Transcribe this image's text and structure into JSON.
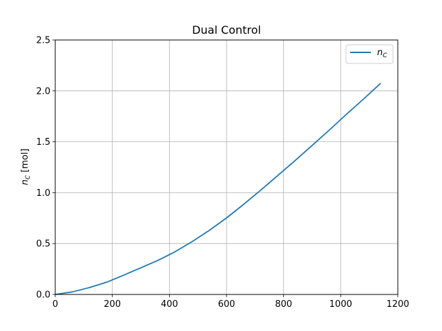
{
  "chart_data": {
    "type": "line",
    "title": "Dual Control",
    "xlabel": "",
    "ylabel": "n_C  [mol]",
    "ylabel_main": "n",
    "ylabel_sub": "C",
    "ylabel_unit": " [mol]",
    "xlim": [
      0,
      1200
    ],
    "ylim": [
      0,
      2.5
    ],
    "xticks": [
      0,
      200,
      400,
      600,
      800,
      1000,
      1200
    ],
    "yticks": [
      0.0,
      0.5,
      1.0,
      1.5,
      2.0,
      2.5
    ],
    "xtick_labels": [
      "0",
      "200",
      "400",
      "600",
      "800",
      "1000",
      "1200"
    ],
    "ytick_labels": [
      "0.0",
      "0.5",
      "1.0",
      "1.5",
      "2.0",
      "2.5"
    ],
    "grid": true,
    "legend_position": "top-right",
    "series": [
      {
        "name": "n_C",
        "name_main": "n",
        "name_sub": "C",
        "color": "#1f77b4",
        "x": [
          0,
          60,
          120,
          180,
          240,
          300,
          360,
          420,
          480,
          540,
          600,
          660,
          720,
          780,
          840,
          900,
          960,
          1020,
          1080,
          1140
        ],
        "y": [
          0.0,
          0.025,
          0.068,
          0.12,
          0.19,
          0.262,
          0.335,
          0.42,
          0.52,
          0.63,
          0.752,
          0.885,
          1.025,
          1.17,
          1.315,
          1.465,
          1.615,
          1.77,
          1.92,
          2.075
        ]
      }
    ]
  }
}
